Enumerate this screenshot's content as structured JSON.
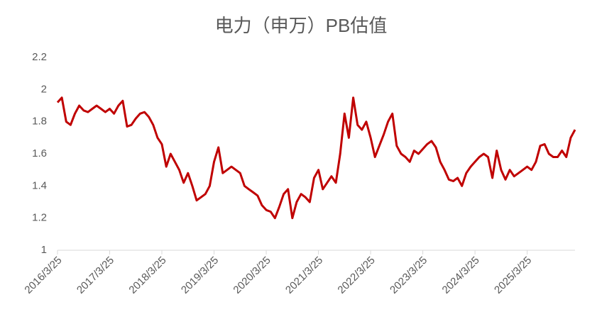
{
  "chart_data": {
    "type": "line",
    "title": "电力（申万）PB估值",
    "categories": [
      "2016/3/25",
      null,
      null,
      null,
      null,
      null,
      null,
      null,
      null,
      null,
      null,
      null,
      "2017/3/25",
      null,
      null,
      null,
      null,
      null,
      null,
      null,
      null,
      null,
      null,
      null,
      "2018/3/25",
      null,
      null,
      null,
      null,
      null,
      null,
      null,
      null,
      null,
      null,
      null,
      "2019/3/25",
      null,
      null,
      null,
      null,
      null,
      null,
      null,
      null,
      null,
      null,
      null,
      "2020/3/25",
      null,
      null,
      null,
      null,
      null,
      null,
      null,
      null,
      null,
      null,
      null,
      "2021/3/25",
      null,
      null,
      null,
      null,
      null,
      null,
      null,
      null,
      null,
      null,
      null,
      "2022/3/25",
      null,
      null,
      null,
      null,
      null,
      null,
      null,
      null,
      null,
      null,
      null,
      "2023/3/25",
      null,
      null,
      null,
      null,
      null,
      null,
      null,
      null,
      null,
      null,
      null,
      "2024/3/25",
      null,
      null,
      null,
      null,
      null,
      null,
      null,
      null,
      null,
      null,
      null,
      "2025/3/25",
      null,
      null,
      null,
      null,
      null,
      null,
      null,
      null,
      null,
      null,
      null
    ],
    "values": [
      1.92,
      1.95,
      1.8,
      1.78,
      1.85,
      1.9,
      1.87,
      1.86,
      1.88,
      1.9,
      1.88,
      1.86,
      1.88,
      1.85,
      1.9,
      1.93,
      1.77,
      1.78,
      1.82,
      1.85,
      1.86,
      1.83,
      1.78,
      1.7,
      1.66,
      1.52,
      1.6,
      1.55,
      1.5,
      1.42,
      1.48,
      1.4,
      1.31,
      1.33,
      1.35,
      1.4,
      1.55,
      1.64,
      1.48,
      1.5,
      1.52,
      1.5,
      1.48,
      1.4,
      1.38,
      1.36,
      1.34,
      1.28,
      1.25,
      1.24,
      1.2,
      1.27,
      1.35,
      1.38,
      1.2,
      1.3,
      1.35,
      1.33,
      1.3,
      1.45,
      1.5,
      1.38,
      1.42,
      1.46,
      1.42,
      1.6,
      1.85,
      1.7,
      1.95,
      1.78,
      1.75,
      1.8,
      1.7,
      1.58,
      1.65,
      1.72,
      1.8,
      1.85,
      1.65,
      1.6,
      1.58,
      1.55,
      1.62,
      1.6,
      1.63,
      1.66,
      1.68,
      1.64,
      1.55,
      1.5,
      1.44,
      1.43,
      1.45,
      1.4,
      1.48,
      1.52,
      1.55,
      1.58,
      1.6,
      1.58,
      1.45,
      1.62,
      1.5,
      1.44,
      1.5,
      1.46,
      1.48,
      1.5,
      1.52,
      1.5,
      1.55,
      1.65,
      1.66,
      1.6,
      1.58,
      1.58,
      1.62,
      1.58,
      1.7,
      1.75
    ],
    "color": "#c00000",
    "ylim": [
      1,
      2.2
    ],
    "yticks": [
      1,
      1.2,
      1.4,
      1.6,
      1.8,
      2,
      2.2
    ],
    "grid": false
  }
}
